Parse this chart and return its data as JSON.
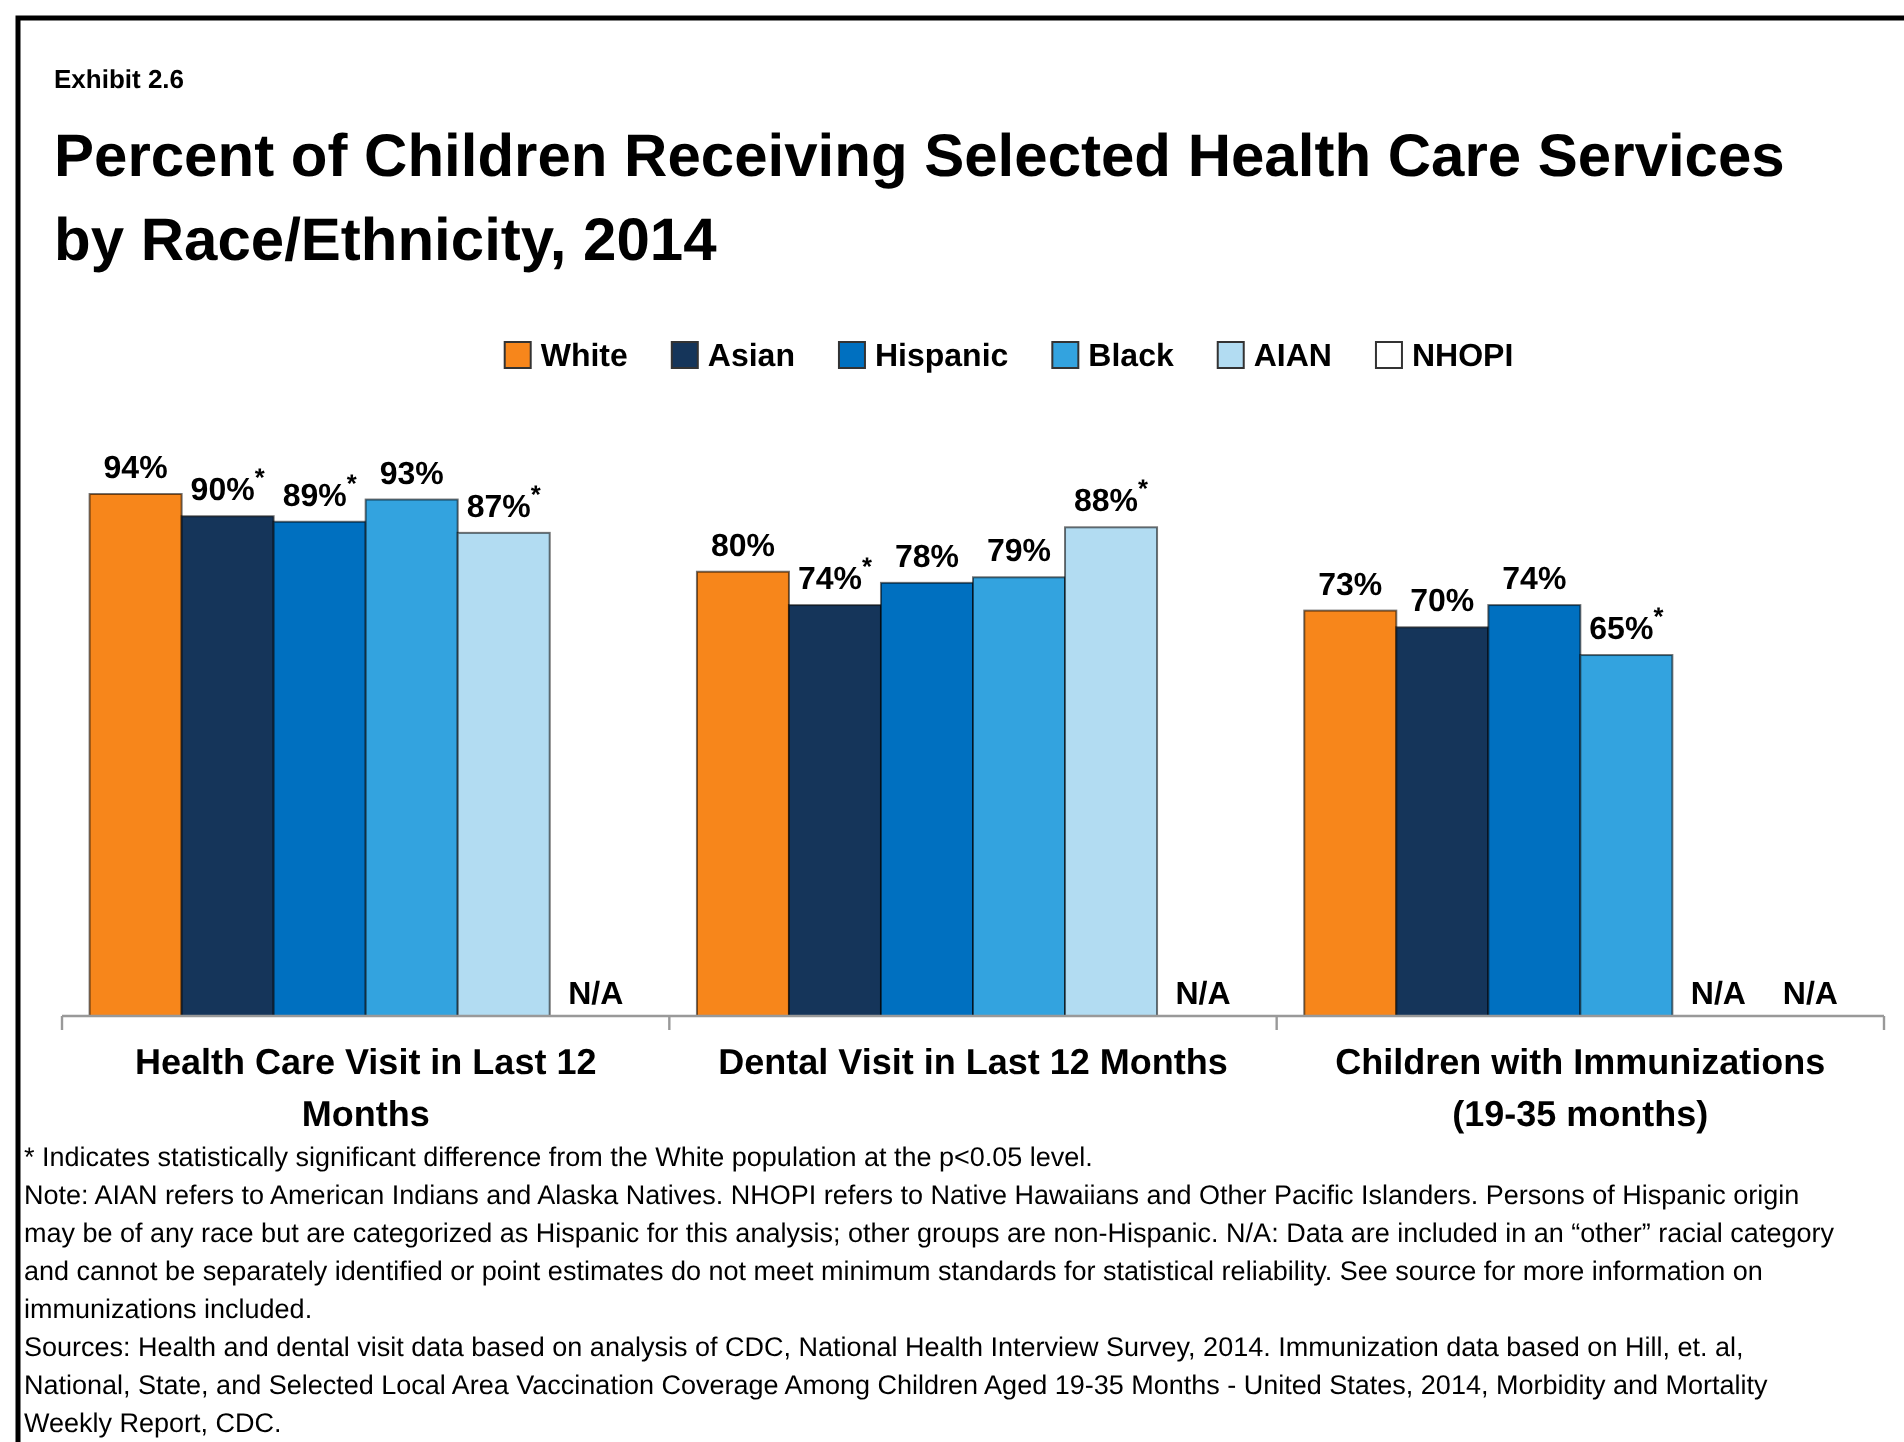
{
  "chart_data": {
    "type": "bar",
    "subtitle": "Exhibit 2.6",
    "title": "Percent of Children Receiving Selected Health Care Services by Race/Ethnicity, 2014",
    "categories": [
      "Health Care Visit in Last 12 Months",
      "Dental Visit in Last 12 Months",
      "Children with Immunizations (19-35 months)"
    ],
    "series": [
      {
        "name": "White",
        "color": "#f7861b",
        "values": [
          94,
          80,
          73
        ],
        "value_labels": [
          "94%",
          "80%",
          "73%"
        ]
      },
      {
        "name": "Asian",
        "color": "#15355a",
        "values": [
          90,
          74,
          70
        ],
        "value_labels": [
          "90%$^{*}$",
          "74%$^{*}$",
          "70%"
        ]
      },
      {
        "name": "Hispanic",
        "color": "#0070c0",
        "values": [
          89,
          78,
          74
        ],
        "value_labels": [
          "89%$^{*}$",
          "78%",
          "74%"
        ]
      },
      {
        "name": "Black",
        "color": "#33a3df",
        "values": [
          93,
          79,
          65
        ],
        "value_labels": [
          "93%",
          "79%",
          "65%$^{*}$"
        ]
      },
      {
        "name": "AIAN",
        "color": "#b2dcf2",
        "values": [
          87,
          88,
          null
        ],
        "value_labels": [
          "87%$^{*}$",
          "88%$^{*}$",
          "N/A"
        ]
      },
      {
        "name": "NHOPI",
        "color": "#ffffff",
        "values": [
          null,
          null,
          null
        ],
        "value_labels": [
          "N/A",
          "N/A",
          "N/A"
        ]
      }
    ],
    "legend": "top",
    "annotations": [
      "* Indicates statistically significant difference from the White population at the p<0.05 level.",
      "Note: AIAN refers to American Indians and Alaska Natives. NHOPI refers to Native Hawaiians and Other Pacific Islanders. Persons of Hispanic origin may be of any race but are categorized as Hispanic for this analysis; other groups are non-Hispanic. N/A: Data are included in an “other” racial category and cannot be separately identified or point estimates do not meet minimum standards for statistical reliability. See source for more information on immunizations included.",
      "Sources: Health and dental visit data based on analysis of CDC, National Health Interview Survey, 2014. Immunization data based on Hill, et. al, National, State, and Selected Local Area Vaccination Coverage Among Children Aged 19-35 Months - United States, 2014, Morbidity and Mortality Weekly Report, CDC."
    ]
  }
}
